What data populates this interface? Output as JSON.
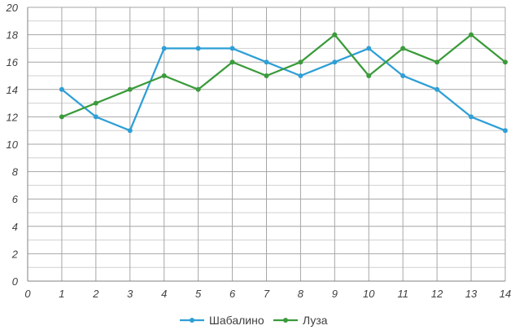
{
  "chart_data": {
    "type": "line",
    "title": "",
    "xlabel": "",
    "ylabel": "",
    "x": [
      1,
      2,
      3,
      4,
      5,
      6,
      7,
      8,
      9,
      10,
      11,
      12,
      13,
      14
    ],
    "xlim": [
      0,
      14
    ],
    "ylim": [
      0,
      20
    ],
    "x_ticks": [
      0,
      1,
      2,
      3,
      4,
      5,
      6,
      7,
      8,
      9,
      10,
      11,
      12,
      13,
      14
    ],
    "y_ticks": [
      0,
      2,
      4,
      6,
      8,
      10,
      12,
      14,
      16,
      18,
      20
    ],
    "grid": true,
    "legend_position": "bottom",
    "series": [
      {
        "name": "Шабалино",
        "color": "#2E9FD6",
        "values": [
          14,
          12,
          11,
          17,
          17,
          17,
          16,
          15,
          16,
          17,
          15,
          14,
          12,
          11
        ]
      },
      {
        "name": "Луза",
        "color": "#3A9B3A",
        "values": [
          12,
          13,
          14,
          15,
          14,
          16,
          15,
          16,
          18,
          15,
          17,
          16,
          18,
          16
        ]
      }
    ]
  },
  "colors": {
    "grid": "#A6A6A6",
    "axis": "#808080",
    "text": "#404040"
  }
}
